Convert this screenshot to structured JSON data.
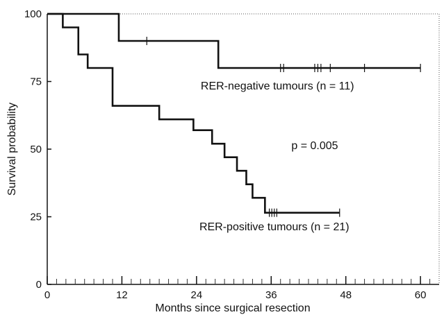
{
  "chart_data": {
    "type": "line",
    "step": true,
    "xlabel": "Months since surgical resection",
    "ylabel": "Survival probability",
    "xlim": [
      0,
      63
    ],
    "ylim": [
      0,
      100
    ],
    "xticks": [
      0,
      12,
      24,
      36,
      48,
      60
    ],
    "xtick_labels": [
      "0",
      "12",
      "24",
      "36",
      "48",
      "60"
    ],
    "yticks": [
      0,
      25,
      50,
      75,
      100
    ],
    "ytick_labels": [
      "0",
      "25",
      "50",
      "75",
      "100"
    ],
    "grid": false,
    "series": [
      {
        "name": "RER-negative tumours (n = 11)",
        "x": [
          0,
          11.5,
          27.5,
          60
        ],
        "y": [
          100,
          90,
          80,
          80
        ],
        "censored": [
          {
            "x": 16,
            "y": 90
          },
          {
            "x": 37.5,
            "y": 80
          },
          {
            "x": 38,
            "y": 80
          },
          {
            "x": 43,
            "y": 80
          },
          {
            "x": 43.5,
            "y": 80
          },
          {
            "x": 44,
            "y": 80
          },
          {
            "x": 45.5,
            "y": 80
          },
          {
            "x": 51,
            "y": 80
          },
          {
            "x": 60,
            "y": 80
          }
        ]
      },
      {
        "name": "RER-positive tumours (n = 21)",
        "x": [
          0,
          2.5,
          5,
          6.5,
          10.5,
          18,
          23.5,
          26.5,
          28.5,
          30.5,
          32,
          33,
          35,
          47
        ],
        "y": [
          100,
          95,
          85,
          80,
          66,
          61,
          57,
          52,
          47,
          42,
          37,
          32,
          26.5,
          26.5
        ],
        "censored": [
          {
            "x": 35.7,
            "y": 26.5
          },
          {
            "x": 36.1,
            "y": 26.5
          },
          {
            "x": 36.5,
            "y": 26.5
          },
          {
            "x": 36.9,
            "y": 26.5
          },
          {
            "x": 47,
            "y": 26.5
          }
        ]
      }
    ],
    "annotations": [
      {
        "text": "p = 0.005",
        "x": 43,
        "y": 50
      },
      {
        "text": "RER-negative tumours (n = 11)",
        "x": 37,
        "y": 72
      },
      {
        "text": "RER-positive tumours (n = 21)",
        "x": 36.5,
        "y": 20
      }
    ]
  }
}
